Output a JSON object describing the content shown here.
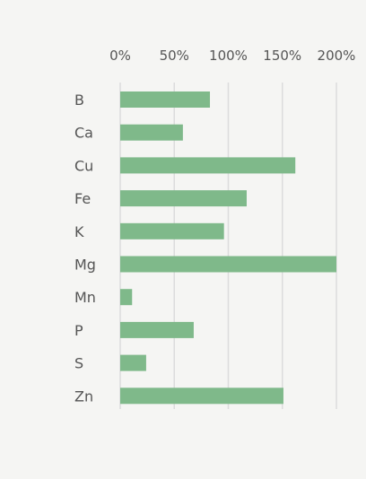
{
  "chart_data": {
    "type": "bar",
    "orientation": "horizontal",
    "categories": [
      "B",
      "Ca",
      "Cu",
      "Fe",
      "K",
      "Mg",
      "Mn",
      "P",
      "S",
      "Zn"
    ],
    "values": [
      0.83,
      0.58,
      1.62,
      1.17,
      0.96,
      2.0,
      0.11,
      0.68,
      0.24,
      1.51
    ],
    "xlim": [
      0,
      2.0
    ],
    "xticks": [
      0,
      0.5,
      1.0,
      1.5,
      2.0
    ],
    "xtick_labels": [
      "0%",
      "50%",
      "100%",
      "150%",
      "200%"
    ],
    "x_axis_position": "top",
    "grid": true,
    "title": "",
    "xlabel": "",
    "ylabel": "",
    "bar_color": "#7fb98a",
    "grid_color": "#dcdcdc",
    "text_color": "#555555",
    "background": "#f5f5f3"
  }
}
